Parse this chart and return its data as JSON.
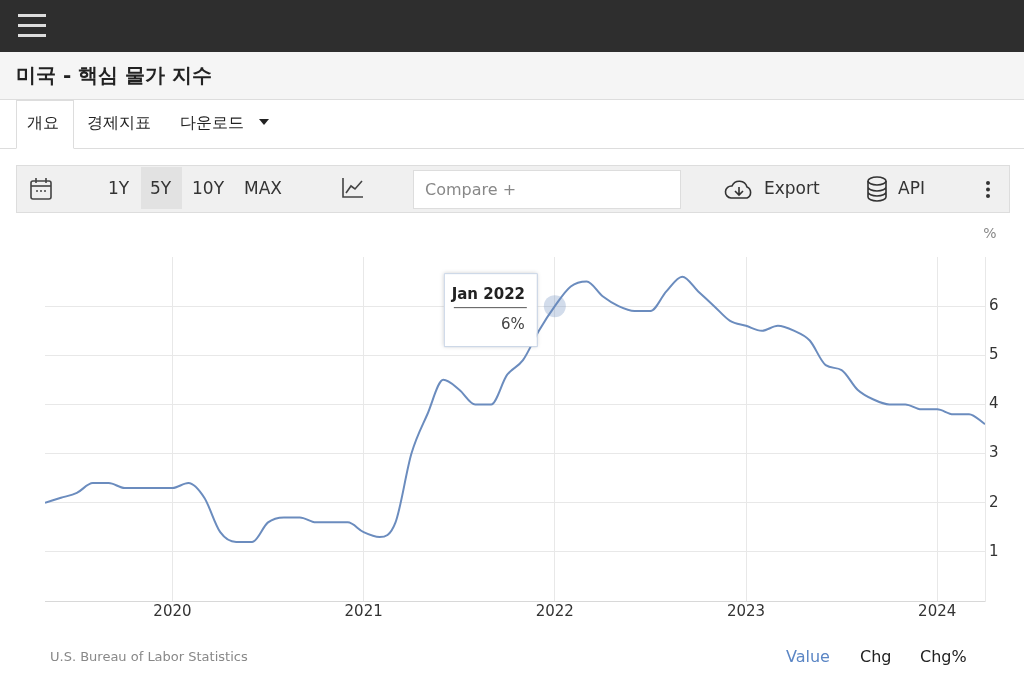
{
  "chart_data": {
    "type": "line",
    "title": "미국 - 핵심 물가 지수",
    "ylabel": "%",
    "x": [
      "2019-05",
      "2019-06",
      "2019-07",
      "2019-08",
      "2019-09",
      "2019-10",
      "2019-11",
      "2019-12",
      "2020-01",
      "2020-02",
      "2020-03",
      "2020-04",
      "2020-05",
      "2020-06",
      "2020-07",
      "2020-08",
      "2020-09",
      "2020-10",
      "2020-11",
      "2020-12",
      "2021-01",
      "2021-02",
      "2021-03",
      "2021-04",
      "2021-05",
      "2021-06",
      "2021-07",
      "2021-08",
      "2021-09",
      "2021-10",
      "2021-11",
      "2021-12",
      "2022-01",
      "2022-02",
      "2022-03",
      "2022-04",
      "2022-05",
      "2022-06",
      "2022-07",
      "2022-08",
      "2022-09",
      "2022-10",
      "2022-11",
      "2022-12",
      "2023-01",
      "2023-02",
      "2023-03",
      "2023-04",
      "2023-05",
      "2023-06",
      "2023-07",
      "2023-08",
      "2023-09",
      "2023-10",
      "2023-11",
      "2023-12",
      "2024-01",
      "2024-02",
      "2024-03",
      "2024-04"
    ],
    "series": [
      {
        "color": "#6b8cbe",
        "values": [
          2.0,
          2.1,
          2.2,
          2.4,
          2.4,
          2.3,
          2.3,
          2.3,
          2.3,
          2.4,
          2.1,
          1.4,
          1.2,
          1.2,
          1.6,
          1.7,
          1.7,
          1.6,
          1.6,
          1.6,
          1.4,
          1.3,
          1.6,
          3.0,
          3.8,
          4.5,
          4.3,
          4.0,
          4.0,
          4.6,
          4.9,
          5.5,
          6.0,
          6.4,
          6.5,
          6.2,
          6.0,
          5.9,
          5.9,
          6.3,
          6.6,
          6.3,
          6.0,
          5.7,
          5.6,
          5.5,
          5.6,
          5.5,
          5.3,
          4.8,
          4.7,
          4.3,
          4.1,
          4.0,
          4.0,
          3.9,
          3.9,
          3.8,
          3.8,
          3.6
        ]
      }
    ],
    "xlim": [
      "2019-05",
      "2024-04"
    ],
    "xticks": [
      "2020",
      "2021",
      "2022",
      "2023",
      "2024"
    ],
    "ylim": [
      0,
      7
    ],
    "yticks": [
      1,
      2,
      3,
      4,
      5,
      6
    ],
    "grid": true,
    "marker": "none",
    "line_style": "solid",
    "annotations": [
      "개요",
      "경제지표",
      "다운로드",
      "1Y",
      "5Y",
      "10Y",
      "MAX",
      "Compare +",
      "Export",
      "API",
      "U.S. Bureau of Labor Statistics",
      "Value",
      "Chg",
      "Chg%",
      {
        "text": "Jan 2022",
        "x": "2022-01",
        "y": 6
      },
      {
        "text": "6%",
        "x": "2022-01",
        "y": 6
      }
    ]
  }
}
